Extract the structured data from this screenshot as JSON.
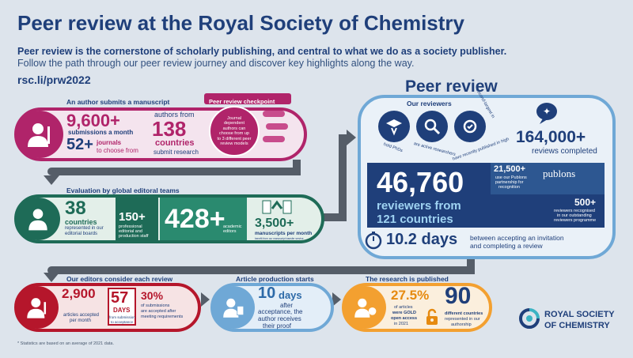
{
  "header": {
    "title": "Peer review at the Royal Society of Chemistry",
    "subtitle1": "Peer review is the cornerstone of scholarly publishing, and central to what we do as a society publisher.",
    "subtitle2": "Follow the path through our peer review journey and discover key highlights along the way.",
    "url": "rsc.li/prw2022"
  },
  "author": {
    "heading": "An author submits a manuscript",
    "submissions_value": "9,600+",
    "submissions_label": "submissions a month",
    "journals_value": "52+",
    "journals_label1": "journals",
    "journals_label2": "to choose from",
    "authors_from": "authors from",
    "countries_value": "138",
    "countries_label": "countries",
    "submit_label": "submit research",
    "checkpoint_title": "Peer review checkpoint",
    "checkpoint_text": "Journal dependent authors can choose from up to 3 different peer review models"
  },
  "editorial": {
    "heading": "Evaluation by global editoral teams",
    "countries_value": "38",
    "countries_label": "countries",
    "countries_desc1": "represented in our",
    "countries_desc2": "editorial boards",
    "staff_value": "150+",
    "staff_label1": "professional",
    "staff_label2": "editorial and",
    "staff_label3": "production staff",
    "editors_value": "428+",
    "editors_label1": "academic",
    "editors_label2": "editors",
    "manuscripts_value": "3,500+",
    "manuscripts_label": "manuscripts per month",
    "manuscripts_desc": "benefit from our manuscript transfer service"
  },
  "peer_review": {
    "title": "Peer review",
    "reviewers_heading": "Our reviewers",
    "icon1_label": "hold PhDs",
    "icon2_label": "are active researchers",
    "icon3_label": "have recently published in high",
    "icon_extra": "second-largest in",
    "reviews_value": "164,000+",
    "reviews_label": "reviews completed",
    "reviewers_value": "46,760",
    "reviewers_label1": "reviewers from",
    "reviewers_label2": "121 countries",
    "publons_value": "21,500+",
    "publons_label1": "use our Publons",
    "publons_label2": "partnership for",
    "publons_label3": "recognition",
    "publons_brand": "publons",
    "recognised_value": "500+",
    "recognised_label1": "reviewers recognised",
    "recognised_label2": "in our outstanding",
    "recognised_label3": "reviewers programme",
    "days_value": "10.2 days",
    "days_label1": "between accepting an invitation",
    "days_label2": "and completing a review"
  },
  "editors": {
    "heading": "Our editors consider each review",
    "accepted_value": "2,900",
    "accepted_label1": "articles accepted",
    "accepted_label2": "per month",
    "days_value": "57",
    "days_label": "DAYS",
    "days_desc1": "from submission",
    "days_desc2": "to acceptance",
    "pct_value": "30%",
    "pct_label1": "of submissions",
    "pct_label2": "are accepted after",
    "pct_label3": "meeting requirements"
  },
  "production": {
    "heading": "Article production starts",
    "days_value": "10",
    "days_unit": "days",
    "label1": "after",
    "label2": "acceptance, the",
    "label3": "author receives",
    "label4": "their proof"
  },
  "published": {
    "heading": "The research is published",
    "gold_value": "27.5%",
    "gold_label1": "of articles",
    "gold_label2": "were GOLD",
    "gold_label3": "open access",
    "gold_label4": "in 2021",
    "countries_value": "90",
    "countries_label1": "different countries",
    "countries_label2": "represented in our",
    "countries_label3": "authorship"
  },
  "logo": {
    "line1": "ROYAL SOCIETY",
    "line2": "OF CHEMISTRY"
  },
  "footnote": "* Statistics are based on an average of 2021 data.",
  "colors": {
    "navy": "#1f3f7a",
    "magenta": "#b0246a",
    "green": "#1e6b57",
    "red": "#b5162b",
    "lightblue": "#6fa8d6",
    "orange": "#f3a030",
    "path": "#555d68"
  }
}
